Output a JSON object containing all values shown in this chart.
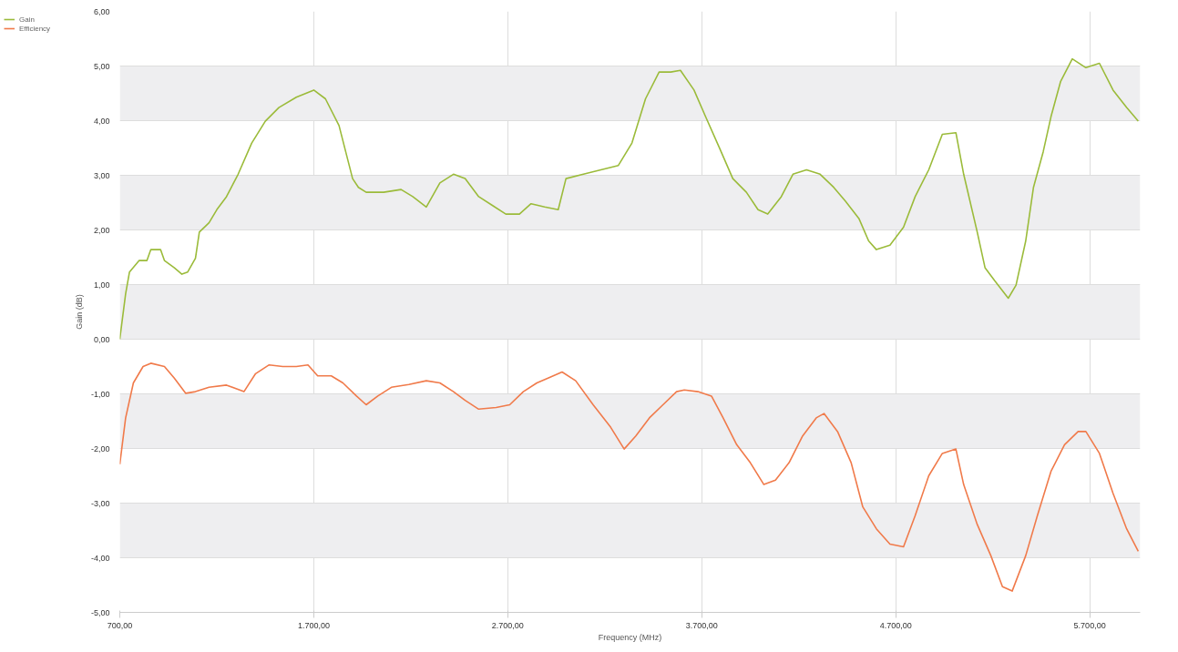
{
  "chart_data": {
    "type": "line",
    "xlabel": "Frequency (MHz)",
    "ylabel": "Gain (dB)",
    "xlim": [
      700,
      5960
    ],
    "ylim": [
      -5,
      6
    ],
    "xticks": [
      {
        "value": 700,
        "label": "700,00"
      },
      {
        "value": 1700,
        "label": "1.700,00"
      },
      {
        "value": 2700,
        "label": "2.700,00"
      },
      {
        "value": 3700,
        "label": "3.700,00"
      },
      {
        "value": 4700,
        "label": "4.700,00"
      },
      {
        "value": 5700,
        "label": "5.700,00"
      }
    ],
    "yticks": [
      {
        "value": -5,
        "label": "-5,00"
      },
      {
        "value": -4,
        "label": "-4,00"
      },
      {
        "value": -3,
        "label": "-3,00"
      },
      {
        "value": -2,
        "label": "-2,00"
      },
      {
        "value": -1,
        "label": "-1,00"
      },
      {
        "value": 0,
        "label": "0,00"
      },
      {
        "value": 1,
        "label": "1,00"
      },
      {
        "value": 2,
        "label": "2,00"
      },
      {
        "value": 3,
        "label": "3,00"
      },
      {
        "value": 4,
        "label": "4,00"
      },
      {
        "value": 5,
        "label": "5,00"
      },
      {
        "value": 6,
        "label": "6,00"
      }
    ],
    "grid": true,
    "legend": "top left",
    "marker": "none",
    "line_style": "solid",
    "series": [
      {
        "name": "Gain",
        "color": "#9bbb3a",
        "x": [
          700,
          730,
          750,
          800,
          840,
          860,
          910,
          930,
          980,
          1020,
          1050,
          1090,
          1110,
          1160,
          1200,
          1250,
          1310,
          1380,
          1450,
          1520,
          1610,
          1700,
          1760,
          1830,
          1900,
          1930,
          1970,
          2060,
          2150,
          2210,
          2280,
          2350,
          2420,
          2480,
          2550,
          2620,
          2690,
          2760,
          2820,
          2890,
          2960,
          3000,
          3090,
          3180,
          3270,
          3340,
          3410,
          3480,
          3540,
          3590,
          3660,
          3720,
          3790,
          3860,
          3930,
          3990,
          4040,
          4110,
          4170,
          4240,
          4310,
          4380,
          4440,
          4510,
          4560,
          4600,
          4670,
          4740,
          4800,
          4870,
          4940,
          5010,
          5050,
          5120,
          5160,
          5210,
          5280,
          5320,
          5370,
          5410,
          5460,
          5500,
          5550,
          5610,
          5680,
          5750,
          5820,
          5890,
          5950
        ],
        "values": [
          0.0,
          0.83,
          1.23,
          1.44,
          1.44,
          1.64,
          1.64,
          1.44,
          1.31,
          1.19,
          1.23,
          1.48,
          1.96,
          2.13,
          2.37,
          2.61,
          3.02,
          3.59,
          3.99,
          4.24,
          4.43,
          4.56,
          4.4,
          3.91,
          2.94,
          2.78,
          2.69,
          2.69,
          2.74,
          2.61,
          2.42,
          2.86,
          3.02,
          2.94,
          2.61,
          2.45,
          2.29,
          2.29,
          2.48,
          2.42,
          2.37,
          2.94,
          3.02,
          3.1,
          3.18,
          3.59,
          4.4,
          4.89,
          4.89,
          4.92,
          4.56,
          4.07,
          3.51,
          2.94,
          2.69,
          2.37,
          2.29,
          2.61,
          3.02,
          3.1,
          3.02,
          2.78,
          2.53,
          2.21,
          1.8,
          1.64,
          1.72,
          2.05,
          2.61,
          3.1,
          3.75,
          3.78,
          3.02,
          1.96,
          1.31,
          1.07,
          0.75,
          0.99,
          1.8,
          2.78,
          3.43,
          4.07,
          4.72,
          5.13,
          4.97,
          5.05,
          4.56,
          4.24,
          3.99
        ]
      },
      {
        "name": "Efficiency",
        "color": "#f07a4a",
        "x": [
          700,
          730,
          770,
          820,
          860,
          930,
          980,
          1040,
          1090,
          1160,
          1250,
          1340,
          1400,
          1470,
          1540,
          1610,
          1670,
          1720,
          1790,
          1850,
          1920,
          1970,
          2030,
          2100,
          2190,
          2280,
          2350,
          2420,
          2480,
          2550,
          2640,
          2710,
          2780,
          2850,
          2910,
          2980,
          3050,
          3140,
          3230,
          3300,
          3360,
          3430,
          3500,
          3570,
          3610,
          3680,
          3750,
          3810,
          3880,
          3950,
          4020,
          4080,
          4150,
          4220,
          4290,
          4330,
          4400,
          4470,
          4530,
          4600,
          4670,
          4740,
          4800,
          4870,
          4940,
          5010,
          5050,
          5120,
          5190,
          5250,
          5300,
          5370,
          5430,
          5500,
          5570,
          5640,
          5680,
          5750,
          5820,
          5890,
          5950
        ],
        "values": [
          -2.29,
          -1.44,
          -0.8,
          -0.5,
          -0.44,
          -0.5,
          -0.71,
          -0.99,
          -0.96,
          -0.88,
          -0.84,
          -0.96,
          -0.63,
          -0.47,
          -0.5,
          -0.5,
          -0.47,
          -0.67,
          -0.67,
          -0.8,
          -1.04,
          -1.2,
          -1.04,
          -0.88,
          -0.83,
          -0.76,
          -0.8,
          -0.96,
          -1.12,
          -1.28,
          -1.25,
          -1.2,
          -0.96,
          -0.8,
          -0.71,
          -0.6,
          -0.76,
          -1.2,
          -1.61,
          -2.01,
          -1.77,
          -1.44,
          -1.2,
          -0.96,
          -0.93,
          -0.96,
          -1.04,
          -1.44,
          -1.93,
          -2.26,
          -2.66,
          -2.58,
          -2.26,
          -1.77,
          -1.44,
          -1.36,
          -1.69,
          -2.26,
          -3.07,
          -3.47,
          -3.75,
          -3.8,
          -3.23,
          -2.5,
          -2.09,
          -2.01,
          -2.66,
          -3.39,
          -3.96,
          -4.53,
          -4.61,
          -3.96,
          -3.23,
          -2.42,
          -1.93,
          -1.69,
          -1.69,
          -2.09,
          -2.82,
          -3.47,
          -3.88
        ]
      }
    ]
  }
}
